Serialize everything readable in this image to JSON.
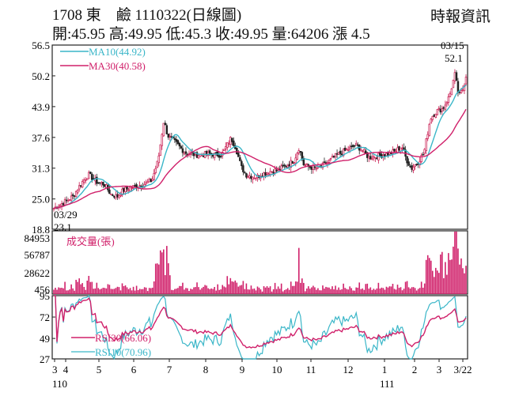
{
  "header": {
    "stock_code": "1708",
    "stock_name": "東　鹼",
    "date_code": "1110322",
    "chart_kind": "(日線圖)",
    "source": "時報資訊",
    "quote_line": "開:45.95 高:49.95 低:45.3 收:49.95 量:64206 漲 4.5"
  },
  "chart_data": [
    {
      "type": "line",
      "panel": "price",
      "yticks": [
        "56.5",
        "50.2",
        "43.9",
        "37.6",
        "31.3",
        "25.0",
        "18.8"
      ],
      "ylim": [
        18.8,
        56.5
      ],
      "series": [
        {
          "name": "MA10(44.92)",
          "color": "#3ab6c8"
        },
        {
          "name": "MA30(40.58)",
          "color": "#d0206a"
        }
      ],
      "candles_color": "#c8184e",
      "annotations": [
        {
          "date": "03/29",
          "value": "23.1"
        },
        {
          "date": "03/15",
          "value": "52.1"
        }
      ],
      "approx_close_path": [
        {
          "x": "3/29",
          "y": 23.1
        },
        {
          "x": "4",
          "y": 24.5
        },
        {
          "x": "4 mid",
          "y": 28.5
        },
        {
          "x": "5",
          "y": 28.0
        },
        {
          "x": "5 late",
          "y": 25.5
        },
        {
          "x": "6",
          "y": 27.0
        },
        {
          "x": "6 late",
          "y": 29.0
        },
        {
          "x": "7",
          "y": 40.5
        },
        {
          "x": "7 mid",
          "y": 36.0
        },
        {
          "x": "8",
          "y": 34.0
        },
        {
          "x": "8 late",
          "y": 35.5
        },
        {
          "x": "9",
          "y": 29.5
        },
        {
          "x": "10",
          "y": 31.0
        },
        {
          "x": "11",
          "y": 31.5
        },
        {
          "x": "12",
          "y": 35.0
        },
        {
          "x": "1",
          "y": 34.0
        },
        {
          "x": "2",
          "y": 31.5
        },
        {
          "x": "3",
          "y": 40.0
        },
        {
          "x": "3/15",
          "y": 52.1
        },
        {
          "x": "3/22",
          "y": 49.95
        }
      ]
    },
    {
      "type": "bar",
      "panel": "volume",
      "title": "成交量(張)",
      "yticks": [
        "84953",
        "56787",
        "28622",
        "456"
      ],
      "ylim": [
        456,
        84953
      ],
      "color": "#d0206a"
    },
    {
      "type": "line",
      "panel": "rsi",
      "yticks": [
        "95",
        "72",
        "49",
        "27"
      ],
      "ylim": [
        27,
        95
      ],
      "series": [
        {
          "name": "RSI30(66.06)",
          "color": "#d0206a"
        },
        {
          "name": "RSI10(70.96)",
          "color": "#3ab6c8"
        }
      ]
    }
  ],
  "xaxis": {
    "months": [
      "3",
      "4",
      "5",
      "6",
      "7",
      "8",
      "9",
      "10",
      "11",
      "12",
      "1",
      "2",
      "3",
      "3/22"
    ],
    "years": [
      "110",
      "111"
    ]
  }
}
